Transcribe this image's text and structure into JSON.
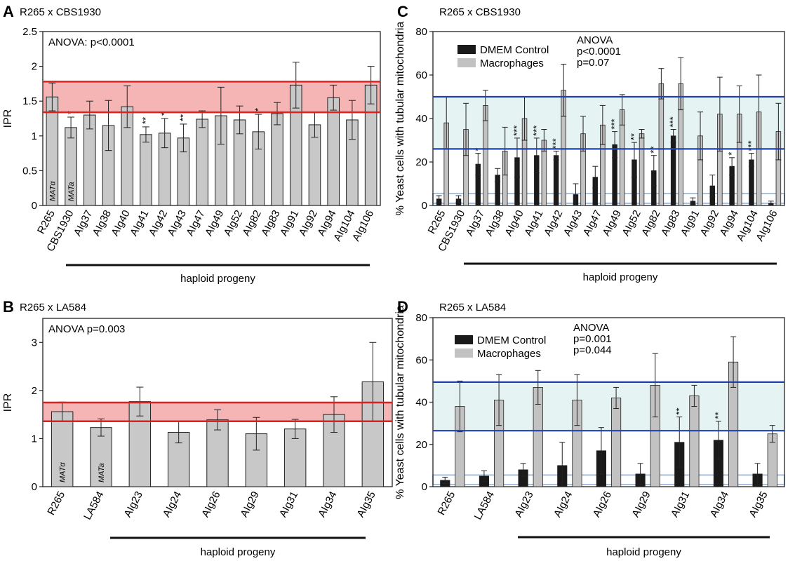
{
  "colors": {
    "ipr_bar": "#c8c8c8",
    "ipr_band": "#f5b5b5",
    "ipr_band_line": "#e02020",
    "control_bar": "#1a1a1a",
    "macrophage_bar": "#c2c2c2",
    "mito_band": "#e6f3f3",
    "mito_band_line": "#2040b0",
    "mito_low_band": "#a8c0dc"
  },
  "panels": [
    {
      "letter": "A",
      "title": "R265 x CBS1930",
      "type": "bar",
      "ylabel": "IPR",
      "ylim": [
        0,
        2.5
      ],
      "yticks": [
        "0",
        "0.5",
        "1",
        "1.5",
        "2",
        "2.5"
      ],
      "annotation": "ANOVA: p<0.0001",
      "categories": [
        "R265",
        "CBS1930",
        "AIg37",
        "AIg38",
        "AIg40",
        "AIg41",
        "AIg42",
        "AIg43",
        "AIg47",
        "AIg49",
        "AIg52",
        "AIg82",
        "AIg83",
        "AIg91",
        "AIg92",
        "AIg94",
        "AIg104",
        "AIg106"
      ],
      "values": [
        1.56,
        1.12,
        1.3,
        1.15,
        1.42,
        1.02,
        1.04,
        0.97,
        1.24,
        1.29,
        1.23,
        1.06,
        1.32,
        1.73,
        1.16,
        1.55,
        1.23,
        1.73
      ],
      "errors": [
        0.2,
        0.15,
        0.2,
        0.36,
        0.3,
        0.11,
        0.21,
        0.2,
        0.12,
        0.41,
        0.2,
        0.25,
        0.16,
        0.33,
        0.18,
        0.18,
        0.28,
        0.27
      ],
      "stars": [
        "",
        "*",
        "",
        "",
        "",
        "**",
        "*",
        "**",
        "",
        "",
        "",
        "*",
        "",
        "",
        "",
        "",
        "",
        ""
      ],
      "mating_labels": [
        "MATα",
        "MATa"
      ],
      "band": [
        1.34,
        1.78
      ],
      "group_label": "haploid progeny"
    },
    {
      "letter": "B",
      "title": "R265 x LA584",
      "type": "bar",
      "ylabel": "IPR",
      "ylim": [
        0,
        3.5
      ],
      "yticks": [
        "0",
        "1",
        "2",
        "3"
      ],
      "annotation": "ANOVA p=0.003",
      "categories": [
        "R265",
        "LA584",
        "AIg23",
        "AIg24",
        "AIg26",
        "AIg29",
        "AIg31",
        "AIg34",
        "AIg35"
      ],
      "values": [
        1.56,
        1.23,
        1.77,
        1.13,
        1.39,
        1.1,
        1.2,
        1.5,
        2.18
      ],
      "errors": [
        0.2,
        0.18,
        0.3,
        0.22,
        0.21,
        0.34,
        0.2,
        0.37,
        0.82
      ],
      "stars": [
        "",
        "",
        "",
        "",
        "",
        "",
        "",
        "",
        ""
      ],
      "mating_labels": [
        "MATα",
        "MATa"
      ],
      "band": [
        1.36,
        1.75
      ],
      "group_label": "haploid progeny"
    },
    {
      "letter": "C",
      "title": "R265 x CBS1930",
      "type": "grouped-bar",
      "ylabel": "% Yeast cells with  tubular mitochondria",
      "ylim": [
        0,
        80
      ],
      "yticks": [
        "0",
        "20",
        "40",
        "60",
        "80"
      ],
      "annotation_lines": [
        "ANOVA",
        "p<0.0001",
        "p=0.07"
      ],
      "legend": [
        "DMEM Control",
        "Macrophages"
      ],
      "categories": [
        "R265",
        "CBS1930",
        "AIg37",
        "AIg38",
        "AIg40",
        "AIg41",
        "AIg42",
        "AIg43",
        "AIg47",
        "AIg49",
        "AIg52",
        "AIg82",
        "AIg83",
        "AIg91",
        "AIg92",
        "AIg94",
        "AIg104",
        "AIg106"
      ],
      "series": [
        {
          "name": "DMEM Control",
          "values": [
            3,
            3,
            19,
            14,
            22,
            23,
            23,
            5,
            13,
            28,
            21,
            16,
            32,
            2,
            9,
            18,
            21,
            1
          ],
          "errors": [
            1.5,
            1.5,
            5,
            3,
            9,
            8,
            2,
            5,
            5,
            6,
            8,
            7,
            3,
            1.5,
            5,
            4,
            3,
            1
          ]
        },
        {
          "name": "Macrophages",
          "values": [
            38,
            35,
            46,
            25,
            40,
            30,
            53,
            33,
            37,
            44,
            33,
            56,
            56,
            32,
            42,
            42,
            43,
            34
          ],
          "errors": [
            12,
            12,
            7,
            11,
            10,
            5,
            12,
            8,
            9,
            7,
            2,
            7,
            12,
            11,
            17,
            13,
            17,
            13
          ]
        }
      ],
      "stars": [
        "",
        "",
        "*",
        "",
        "***",
        "***",
        "***",
        "",
        "",
        "***",
        "**",
        "**",
        "***",
        "",
        "",
        "*",
        "***",
        ""
      ],
      "band": [
        26,
        50
      ],
      "low_band": [
        1,
        5.5
      ],
      "group_label": "haploid progeny"
    },
    {
      "letter": "D",
      "title": "R265 x LA584",
      "type": "grouped-bar",
      "ylabel": "% Yeast cells with  tubular mitochondria",
      "ylim": [
        0,
        80
      ],
      "yticks": [
        "0",
        "20",
        "40",
        "60",
        "80"
      ],
      "annotation_lines": [
        "ANOVA",
        "p=0.001",
        "p=0.044"
      ],
      "legend": [
        "DMEM Control",
        "Macrophages"
      ],
      "categories": [
        "R265",
        "LA584",
        "AIg23",
        "AIg24",
        "AIg26",
        "AIg29",
        "AIg31",
        "AIg34",
        "AIg35"
      ],
      "series": [
        {
          "name": "DMEM Control",
          "values": [
            3,
            5,
            8,
            10,
            17,
            6,
            21,
            22,
            6
          ],
          "errors": [
            1.5,
            2.5,
            3,
            11,
            11,
            5,
            12,
            9,
            5
          ]
        },
        {
          "name": "Macrophages",
          "values": [
            38,
            41,
            47,
            41,
            42,
            48,
            43,
            59,
            25
          ],
          "errors": [
            12,
            12,
            8,
            12,
            5,
            15,
            5,
            12,
            4
          ]
        }
      ],
      "stars": [
        "",
        "",
        "",
        "",
        "",
        "",
        "**",
        "**",
        ""
      ],
      "band": [
        26.5,
        49.5
      ],
      "low_band": [
        1,
        5.5
      ],
      "group_label": "haploid progeny"
    }
  ]
}
